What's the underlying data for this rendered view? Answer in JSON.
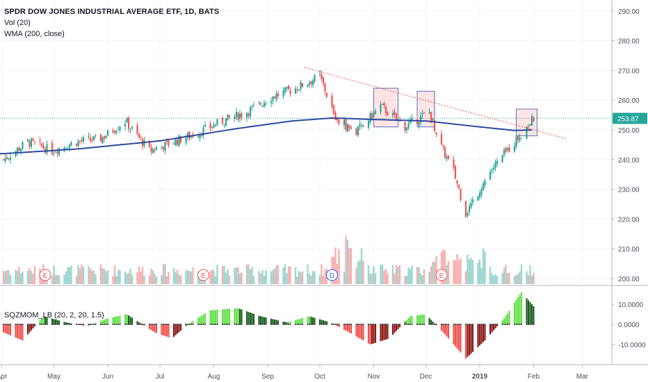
{
  "chart_data": [
    {
      "type": "candlestick",
      "title": "SPDR DOW JONES INDUSTRIAL AVERAGE ETF, 1D, BATS",
      "indicators": [
        "Vol (20)",
        "WMA (200, close)"
      ],
      "ylim": [
        197,
        294
      ],
      "yticks": [
        200,
        210,
        220,
        230,
        240,
        250,
        260,
        270,
        280,
        290
      ],
      "ytick_labels": [
        "200.00",
        "210.00",
        "220.00",
        "230.00",
        "240.00",
        "250.00",
        "260.00",
        "270.00",
        "280.00",
        "290.00"
      ],
      "last_price": 253.87,
      "last_price_label": "253.87",
      "up_color": "#26a69a",
      "down_color": "#ef5350",
      "wma_color": "#2962ff",
      "x_axis_labels": [
        "Apr",
        "May",
        "Jun",
        "Jul",
        "Aug",
        "Sep",
        "Oct",
        "Nov",
        "Dec",
        "2019",
        "Feb",
        "Mar"
      ],
      "close_path": {
        "dates": [
          "2018-04-02",
          "2018-04-16",
          "2018-04-30",
          "2018-05-14",
          "2018-05-28",
          "2018-06-11",
          "2018-06-25",
          "2018-07-09",
          "2018-07-23",
          "2018-08-06",
          "2018-08-20",
          "2018-09-03",
          "2018-09-17",
          "2018-10-01",
          "2018-10-10",
          "2018-10-22",
          "2018-11-05",
          "2018-11-19",
          "2018-12-03",
          "2018-12-10",
          "2018-12-17",
          "2018-12-24",
          "2019-01-07",
          "2019-01-21",
          "2019-02-01"
        ],
        "closes": [
          240,
          246,
          243,
          246,
          247,
          253,
          243,
          246,
          249,
          253,
          256,
          261,
          264,
          268,
          254,
          249,
          258,
          251,
          256,
          244,
          236,
          222,
          236,
          246,
          253.87
        ]
      },
      "wma": {
        "dates": [
          "2018-04-02",
          "2018-05-15",
          "2018-07-01",
          "2018-08-15",
          "2018-09-15",
          "2018-10-08",
          "2018-11-01",
          "2018-12-01",
          "2019-01-01",
          "2019-01-21",
          "2019-02-01"
        ],
        "values": [
          242,
          243.6,
          246.3,
          250.5,
          253,
          254,
          253.5,
          253,
          251,
          249.8,
          250
        ]
      },
      "trendline": {
        "start": [
          "2018-09-22",
          271
        ],
        "end": [
          "2019-02-20",
          247
        ]
      },
      "highlight_boxes": [
        {
          "from": "2018-11-01",
          "to": "2018-11-15",
          "low": 251,
          "high": 264
        },
        {
          "from": "2018-11-26",
          "to": "2018-12-06",
          "low": 251,
          "high": 263
        },
        {
          "from": "2019-01-22",
          "to": "2019-02-03",
          "low": 248,
          "high": 257
        }
      ],
      "event_markers": [
        {
          "date": "2018-04-26",
          "label": "E"
        },
        {
          "date": "2018-07-26",
          "label": "E"
        },
        {
          "date": "2018-10-08",
          "label": "D"
        },
        {
          "date": "2018-12-10",
          "label": "E"
        }
      ]
    },
    {
      "type": "histogram",
      "title": "SQZMOM_LB (20, 2, 20, 1.5)",
      "ylim": [
        -17,
        17
      ],
      "yticks": [
        10,
        0,
        -10
      ],
      "ytick_labels": [
        "10.0000",
        "0.0000",
        "-10.0000"
      ],
      "keyframes": {
        "dates": [
          "2018-04-02",
          "2018-04-13",
          "2018-04-25",
          "2018-05-08",
          "2018-05-20",
          "2018-06-01",
          "2018-06-12",
          "2018-06-28",
          "2018-07-08",
          "2018-07-17",
          "2018-07-30",
          "2018-08-15",
          "2018-08-28",
          "2018-09-12",
          "2018-09-25",
          "2018-10-07",
          "2018-10-20",
          "2018-10-30",
          "2018-11-10",
          "2018-11-22",
          "2018-12-01",
          "2018-12-12",
          "2018-12-24",
          "2019-01-04",
          "2019-01-15",
          "2019-01-25",
          "2019-02-01"
        ],
        "values": [
          -4,
          -8,
          4,
          1,
          -1,
          3,
          5,
          -4,
          -7,
          0,
          7,
          8,
          4,
          1,
          4,
          1,
          -5,
          -10,
          -7,
          4,
          5,
          -5,
          -17,
          -8,
          3,
          16,
          9
        ]
      }
    }
  ]
}
